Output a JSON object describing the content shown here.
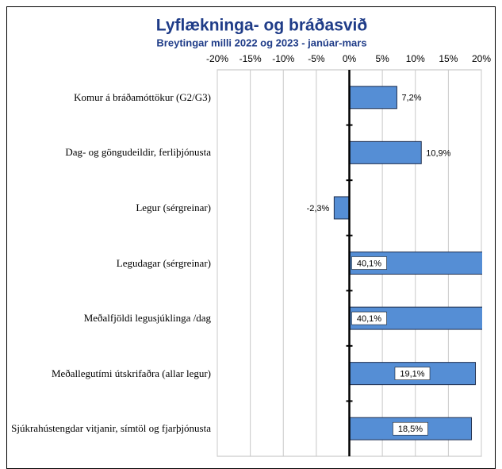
{
  "chart_data": {
    "type": "barh",
    "title": "Lyflækninga- og bráðasvið",
    "subtitle": "Breytingar milli 2022 og 2023 - janúar-mars",
    "categories": [
      "Komur á bráðamóttökur (G2/G3)",
      "Dag- og göngudeildir, ferliþjónusta",
      "Legur (sérgreinar)",
      "Legudagar (sérgreinar)",
      "Meðalfjöldi legusjúklinga /dag",
      "Meðallegutími útskrifaðra (allar legur)",
      "Sjúkrahústengdar vitjanir, símtöl og fjarþjónusta"
    ],
    "values": [
      7.2,
      10.9,
      -2.3,
      40.1,
      40.1,
      19.1,
      18.5
    ],
    "value_labels": [
      "7,2%",
      "10,9%",
      "-2,3%",
      "40,1%",
      "40,1%",
      "19,1%",
      "18,5%"
    ],
    "color": "#558ed5",
    "xlim": [
      -20,
      20
    ],
    "xticks": [
      {
        "value": -20,
        "label": "-20%"
      },
      {
        "value": -15,
        "label": "-15%"
      },
      {
        "value": -10,
        "label": "-10%"
      },
      {
        "value": -5,
        "label": "-5%"
      },
      {
        "value": 0,
        "label": "0%"
      },
      {
        "value": 5,
        "label": "5%"
      },
      {
        "value": 10,
        "label": "10%"
      },
      {
        "value": 15,
        "label": "15%"
      },
      {
        "value": 20,
        "label": "20%"
      }
    ],
    "grid": true
  }
}
